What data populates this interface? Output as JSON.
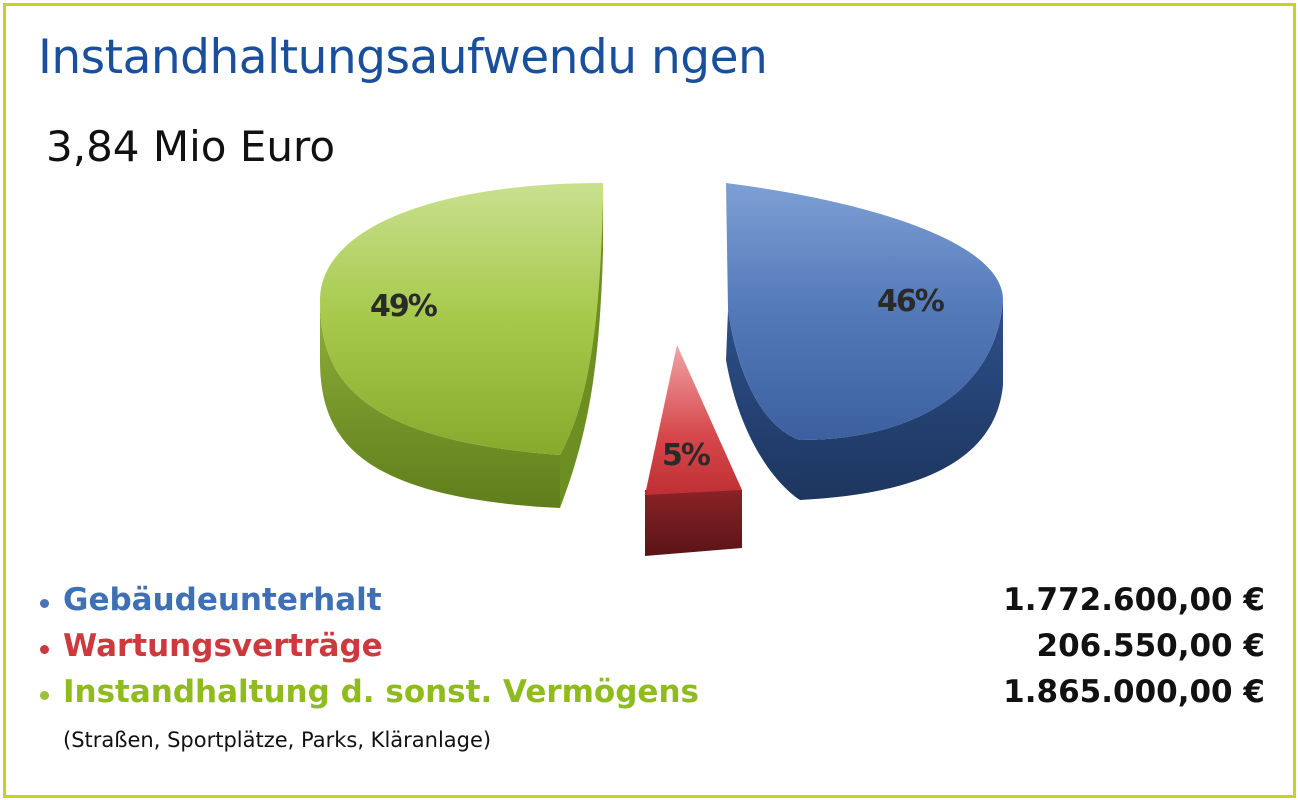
{
  "title": "Instandhaltungsaufwendu ngen",
  "subtitle": "3,84 Mio Euro",
  "chart_data": {
    "type": "pie",
    "slices": [
      {
        "label": "Gebäudeunterhalt",
        "value": 46,
        "value_label": "46%",
        "amount": "1.772.600,00 €",
        "color": "#4a72b0"
      },
      {
        "label": "Wartungsverträge",
        "value": 5,
        "value_label": "5%",
        "amount": "206.550,00 €",
        "color": "#c9383c"
      },
      {
        "label": "Instandhaltung d. sonst. Vermögens",
        "value": 49,
        "value_label": "49%",
        "amount": "1.865.000,00 €",
        "color": "#9cc03c"
      }
    ],
    "note": "(Straßen, Sportplätze, Parks, Kläranlage)"
  },
  "colors": {
    "border": "#c4d22a",
    "title": "#1a4f9c",
    "blue": "#4a72b0",
    "red": "#c9383c",
    "green": "#9cc03c"
  }
}
